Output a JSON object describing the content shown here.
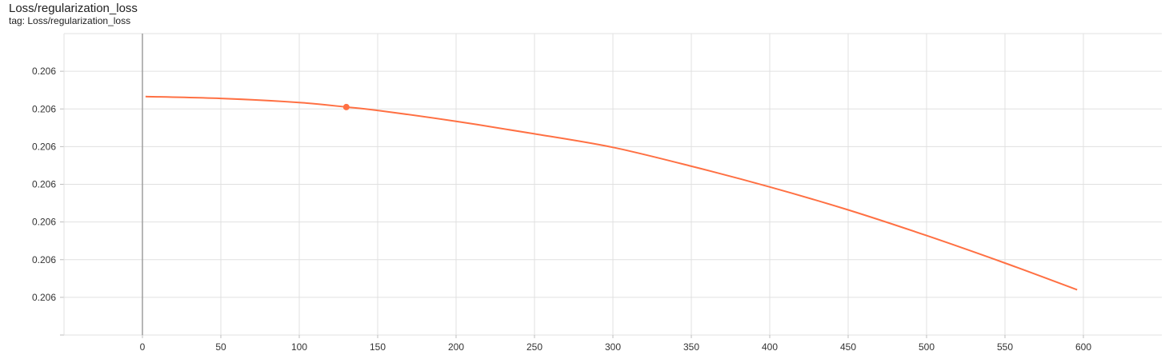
{
  "card": {
    "title": "Loss/regularization_loss",
    "tag": "tag: Loss/regularization_loss"
  },
  "chart_data": {
    "type": "line",
    "title": "Loss/regularization_loss",
    "xlabel": "",
    "ylabel": "",
    "xlim": [
      -50,
      650
    ],
    "ylim": [
      0,
      8
    ],
    "x_ticks": [
      0,
      50,
      100,
      150,
      200,
      250,
      300,
      350,
      400,
      450,
      500,
      550,
      600
    ],
    "y_ticks": [
      1,
      2,
      3,
      4,
      5,
      6,
      7
    ],
    "y_tick_labels": [
      "0.206",
      "0.206",
      "0.206",
      "0.206",
      "0.206",
      "0.206",
      "0.206"
    ],
    "grid": true,
    "line_color": "#ff7043",
    "axis_color": "#9e9e9e",
    "grid_color": "#e0e0e0",
    "series": [
      {
        "x": [
          2,
          50,
          100,
          130,
          150,
          200,
          250,
          300,
          350,
          400,
          450,
          500,
          550,
          596
        ],
        "values": [
          6.33,
          6.28,
          6.17,
          6.05,
          5.96,
          5.67,
          5.34,
          4.98,
          4.48,
          3.93,
          3.32,
          2.64,
          1.91,
          1.2
        ]
      }
    ],
    "highlight_point": {
      "x": 130,
      "y": 6.05
    }
  }
}
